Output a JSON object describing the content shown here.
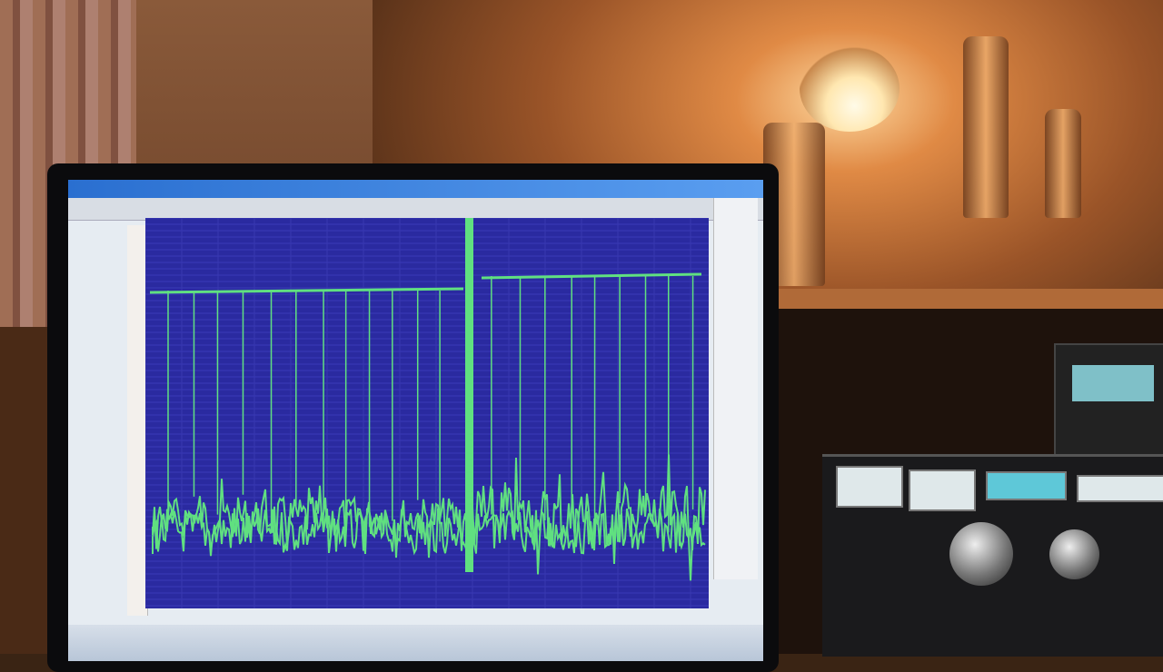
{
  "scene": {
    "subject": "monitor-showing-spectrum-display",
    "colors": {
      "plot_background": "#2a2aa0",
      "trace": "#60e080",
      "lamp_glow": "#ffe7b0",
      "wall": "#8a5a3a"
    }
  },
  "chart_data": {
    "type": "line",
    "grid": true,
    "legend": "none"
  }
}
